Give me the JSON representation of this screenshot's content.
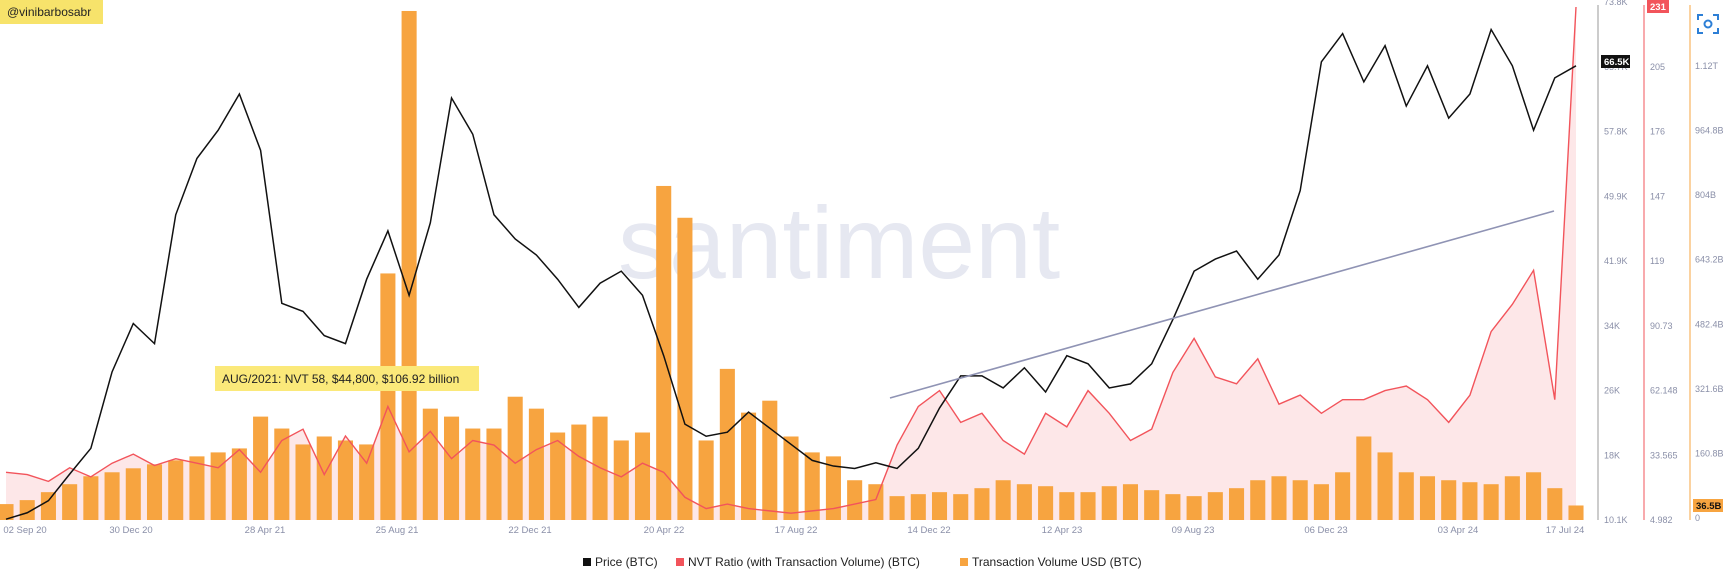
{
  "author_tag": "@vinibarbosabr",
  "watermark": "santiment",
  "annotation": "AUG/2021: NVT 58, $44,800, $106.92 billion",
  "colors": {
    "price": "#111111",
    "nvt": "#f2545b",
    "nvt_fill": "#fde3e4",
    "volume": "#f7a440",
    "trend": "#8f93b4",
    "author_bg": "#f7e36b",
    "annotation_bg": "#fbe97a",
    "axis_text": "#8a8fa8"
  },
  "icons": {
    "screenshot": "scan-icon"
  },
  "chart_data": {
    "type": "line",
    "x_tick_labels": [
      "02 Sep 20",
      "30 Dec 20",
      "28 Apr 21",
      "25 Aug 21",
      "22 Dec 21",
      "20 Apr 22",
      "17 Aug 22",
      "14 Dec 22",
      "12 Apr 23",
      "09 Aug 23",
      "06 Dec 23",
      "03 Apr 24",
      "17 Jul 24"
    ],
    "price_axis": {
      "ticks": [
        "73.8K",
        "65.7K",
        "57.8K",
        "49.9K",
        "41.9K",
        "34K",
        "26K",
        "18K",
        "10.1K"
      ],
      "ylim": [
        10100,
        73800
      ],
      "current_label": "66.5K"
    },
    "nvt_axis": {
      "ticks": [
        "231",
        "205",
        "176",
        "147",
        "119",
        "90.73",
        "62.148",
        "33.565",
        "4.982"
      ],
      "ylim": [
        4.982,
        231
      ],
      "current_label": "231"
    },
    "volume_axis": {
      "ticks": [
        "1.12T",
        "964.8B",
        "804B",
        "643.2B",
        "482.4B",
        "321.6B",
        "160.8B",
        "0"
      ],
      "ylim": [
        0,
        1290000000000
      ],
      "current_label": "36.5B"
    },
    "legend": [
      {
        "name": "Price (BTC)",
        "color": "#111111"
      },
      {
        "name": "NVT Ratio (with Transaction Volume) (BTC)",
        "color": "#f2545b"
      },
      {
        "name": "Transaction Volume USD (BTC)",
        "color": "#f7a440"
      }
    ],
    "series": [
      {
        "name": "Price (BTC)",
        "values": [
          10200,
          11000,
          12500,
          15800,
          19000,
          28500,
          34500,
          32000,
          48000,
          55000,
          58500,
          63000,
          56000,
          37000,
          36000,
          33000,
          32000,
          40000,
          46000,
          38000,
          47000,
          62500,
          58000,
          48000,
          45000,
          43000,
          40000,
          36500,
          39500,
          41000,
          38000,
          30500,
          22000,
          20500,
          21000,
          23500,
          21500,
          19500,
          17500,
          16800,
          16500,
          17200,
          16500,
          19000,
          24000,
          28000,
          28000,
          26500,
          29000,
          26000,
          30500,
          29500,
          26500,
          27000,
          29500,
          35000,
          41000,
          42500,
          43500,
          40000,
          43000,
          51000,
          67000,
          70500,
          64500,
          69000,
          61500,
          66500,
          60000,
          63000,
          71000,
          66500,
          58500,
          65000,
          66500
        ]
      },
      {
        "name": "NVT Ratio (with Transaction Volume) (BTC)",
        "values": [
          26,
          25,
          22,
          28,
          24,
          30,
          34,
          29,
          32,
          30,
          28,
          36,
          26,
          40,
          45,
          25,
          42,
          30,
          55,
          35,
          44,
          32,
          40,
          38,
          30,
          36,
          40,
          33,
          28,
          24,
          30,
          26,
          15,
          10,
          12,
          10,
          9,
          8,
          9,
          10,
          12,
          14,
          38,
          55,
          62,
          48,
          52,
          40,
          34,
          52,
          46,
          62,
          52,
          40,
          45,
          70,
          85,
          68,
          65,
          76,
          56,
          60,
          52,
          58,
          58,
          62,
          64,
          58,
          48,
          60,
          88,
          100,
          115,
          58,
          231
        ]
      },
      {
        "name": "Transaction Volume USD (BTC)",
        "values": [
          40,
          50,
          70,
          90,
          110,
          120,
          130,
          140,
          150,
          160,
          170,
          180,
          260,
          230,
          190,
          210,
          200,
          190,
          620,
          1280,
          280,
          260,
          230,
          230,
          310,
          280,
          220,
          240,
          260,
          200,
          220,
          840,
          760,
          200,
          380,
          270,
          300,
          210,
          170,
          160,
          100,
          90,
          60,
          65,
          70,
          65,
          80,
          100,
          90,
          85,
          70,
          70,
          85,
          90,
          75,
          65,
          60,
          70,
          80,
          100,
          110,
          100,
          90,
          120,
          210,
          170,
          120,
          110,
          100,
          95,
          90,
          110,
          120,
          80,
          36.5
        ]
      }
    ]
  }
}
